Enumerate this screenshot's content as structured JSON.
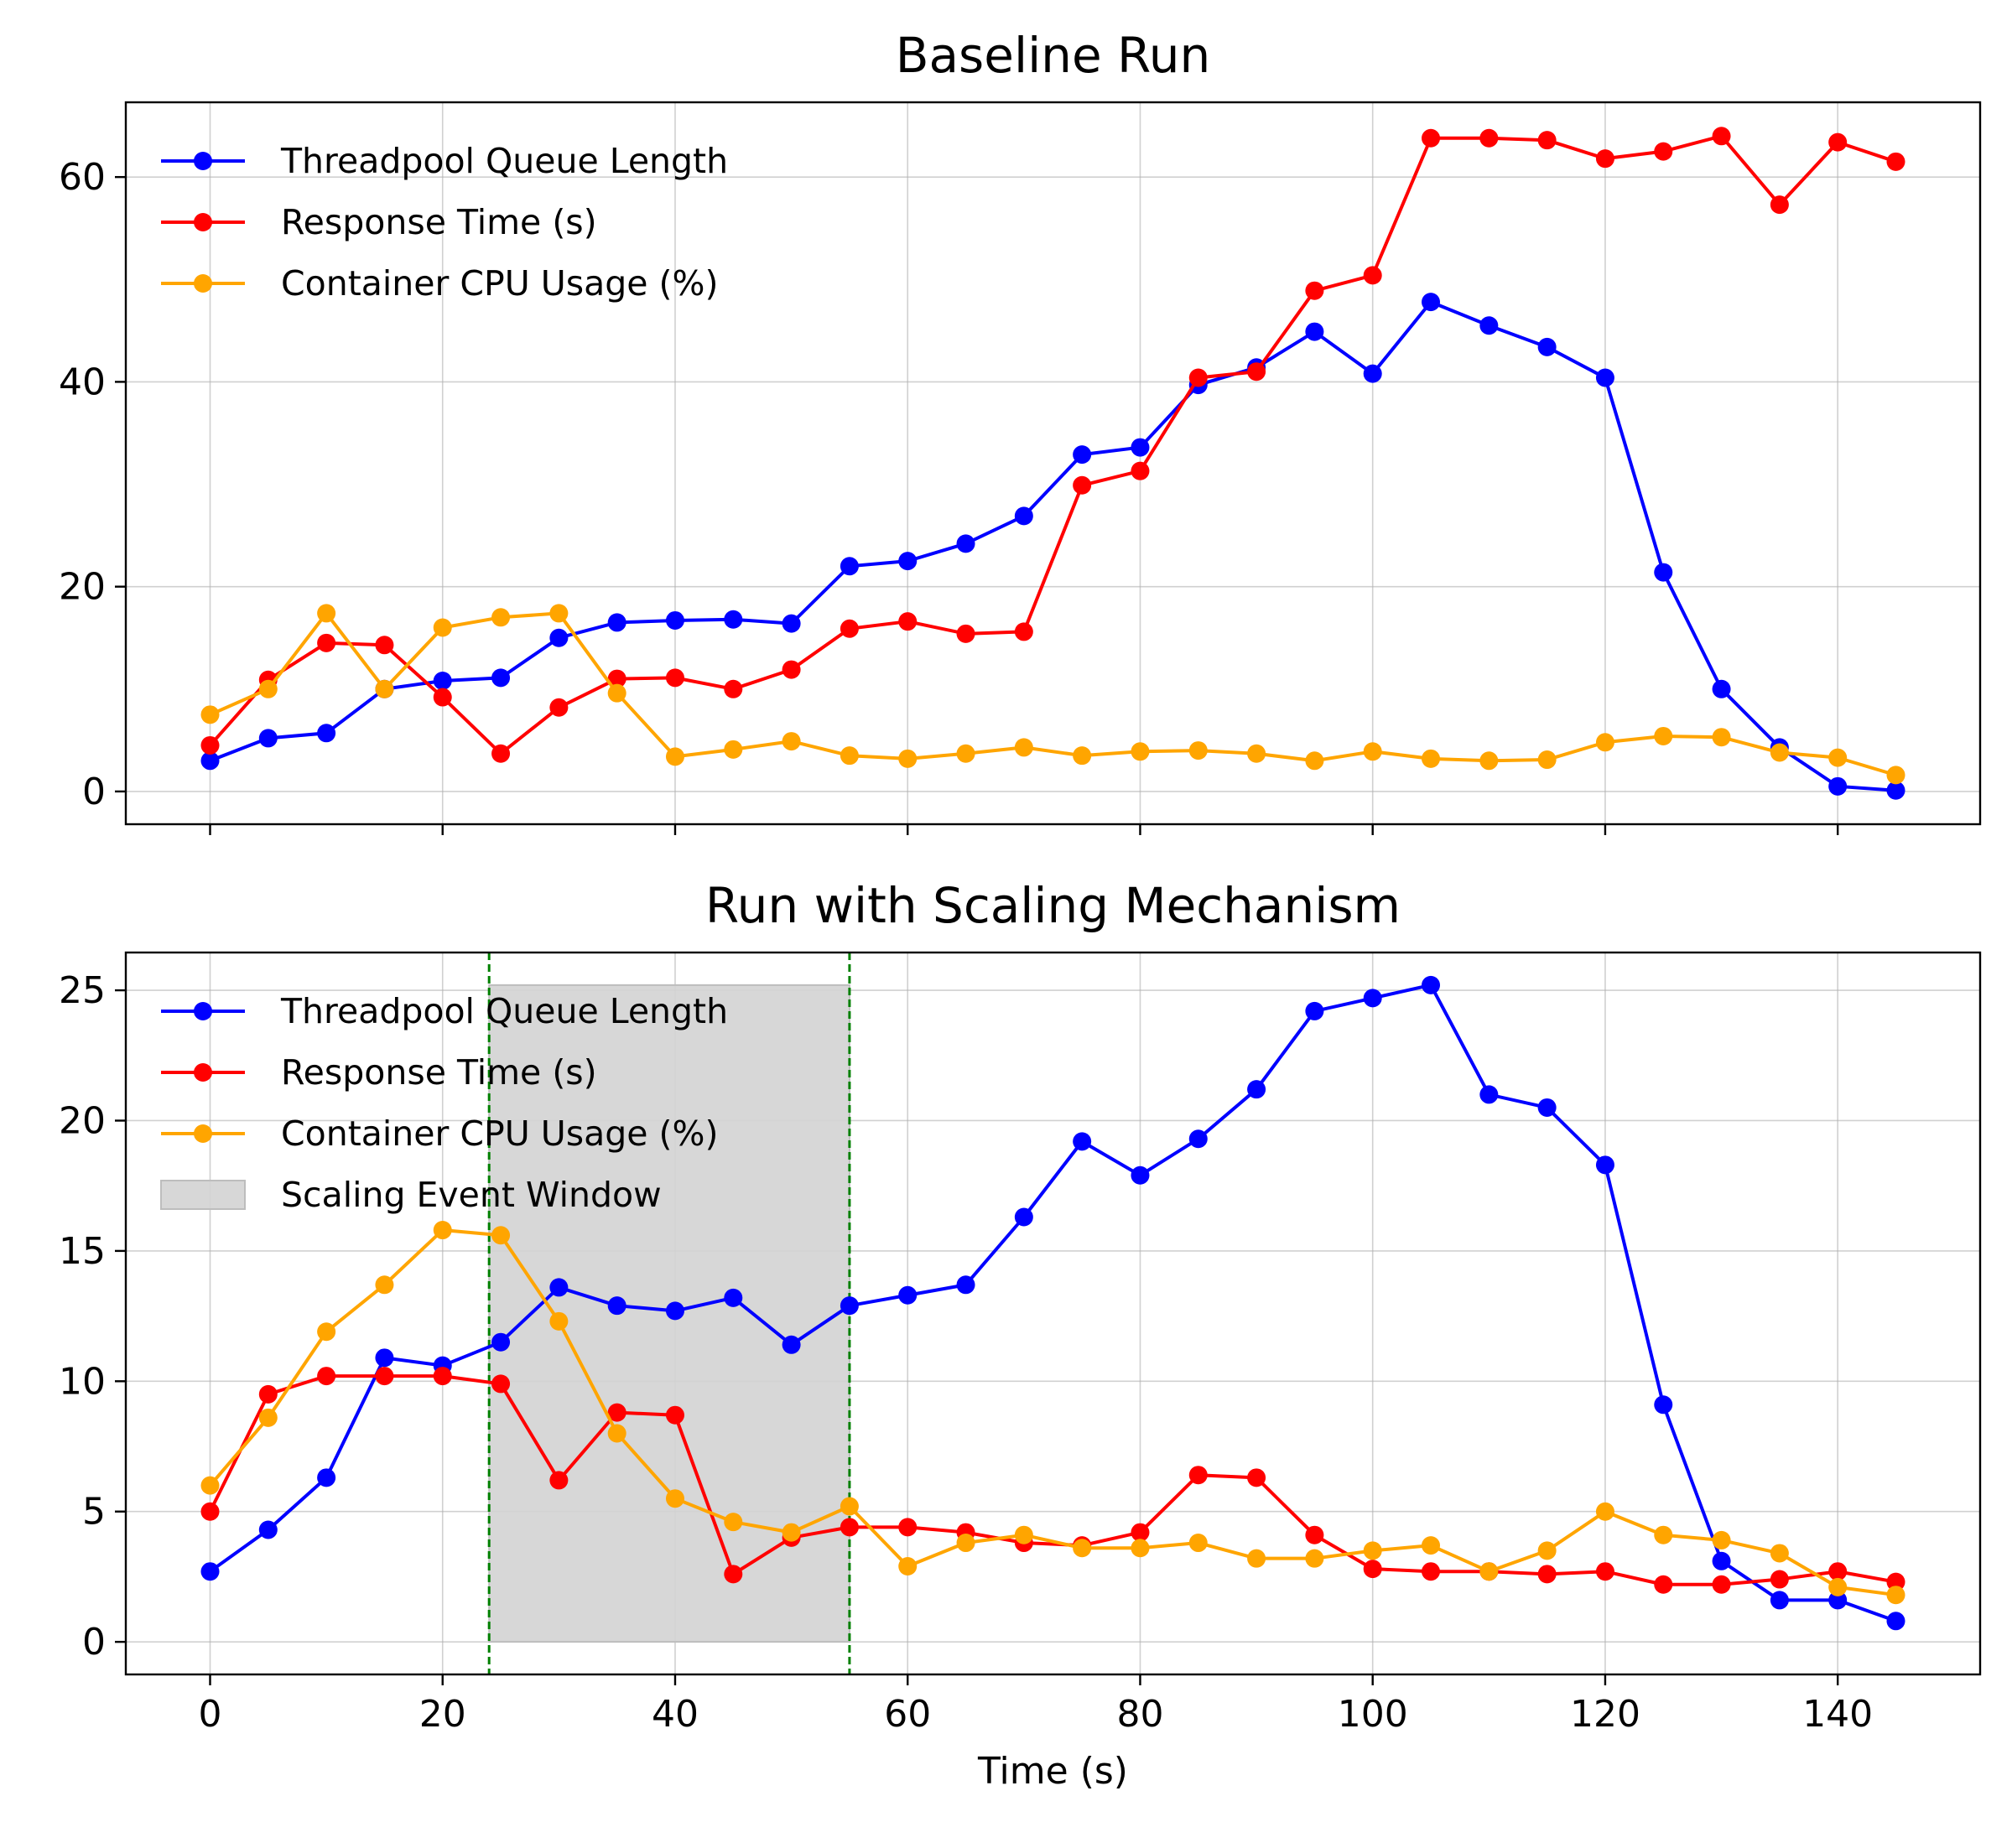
{
  "chart_data": [
    {
      "type": "line",
      "title": "Baseline Run",
      "xlabel": "",
      "ylabel": "",
      "xlim": [
        -7.25,
        152.25
      ],
      "ylim": [
        -3.2,
        67.3
      ],
      "xticks": [
        0,
        20,
        40,
        60,
        80,
        100,
        120,
        140
      ],
      "show_xtick_labels": false,
      "yticks": [
        0,
        20,
        40,
        60
      ],
      "grid": true,
      "legend_position": "upper-left",
      "x": [
        0,
        5,
        10,
        15,
        20,
        25,
        30,
        35,
        40,
        45,
        50,
        55,
        60,
        65,
        70,
        75,
        80,
        85,
        90,
        95,
        100,
        105,
        110,
        115,
        120,
        125,
        130,
        135,
        140,
        145
      ],
      "series": [
        {
          "name": "Threadpool Queue Length",
          "color": "#0000ff",
          "values": [
            3.0,
            5.2,
            5.7,
            10.0,
            10.8,
            11.1,
            15.0,
            16.5,
            16.7,
            16.8,
            16.4,
            22.0,
            22.5,
            24.2,
            26.9,
            32.9,
            33.6,
            39.7,
            41.4,
            44.9,
            40.8,
            47.8,
            45.5,
            43.4,
            40.4,
            21.4,
            10.0,
            4.3,
            0.5,
            0.1
          ]
        },
        {
          "name": "Response Time (s)",
          "color": "#ff0000",
          "values": [
            4.5,
            10.9,
            14.5,
            14.3,
            9.2,
            3.7,
            8.2,
            11.0,
            11.1,
            10.0,
            11.9,
            15.9,
            16.6,
            15.4,
            15.6,
            29.9,
            31.3,
            40.4,
            41.0,
            48.9,
            50.4,
            63.8,
            63.8,
            63.6,
            61.8,
            62.5,
            64.0,
            57.3,
            63.4,
            61.5
          ]
        },
        {
          "name": "Container CPU Usage (%)",
          "color": "#ffa500",
          "values": [
            7.5,
            10.0,
            17.4,
            10.0,
            16.0,
            17.0,
            17.4,
            9.6,
            3.4,
            4.1,
            4.9,
            3.5,
            3.2,
            3.7,
            4.3,
            3.5,
            3.9,
            4.0,
            3.7,
            3.0,
            3.9,
            3.2,
            3.0,
            3.1,
            4.8,
            5.4,
            5.3,
            3.8,
            3.3,
            1.6
          ]
        }
      ]
    },
    {
      "type": "line",
      "title": "Run with Scaling Mechanism",
      "xlabel": "Time (s)",
      "ylabel": "",
      "xlim": [
        -7.25,
        152.25
      ],
      "ylim": [
        -1.25,
        26.45
      ],
      "xticks": [
        0,
        20,
        40,
        60,
        80,
        100,
        120,
        140
      ],
      "yticks": [
        0,
        5,
        10,
        15,
        20,
        25
      ],
      "grid": true,
      "legend_position": "upper-left",
      "x": [
        0,
        5,
        10,
        15,
        20,
        25,
        30,
        35,
        40,
        45,
        50,
        55,
        60,
        65,
        70,
        75,
        80,
        85,
        90,
        95,
        100,
        105,
        110,
        115,
        120,
        125,
        130,
        135,
        140,
        145
      ],
      "series": [
        {
          "name": "Threadpool Queue Length",
          "color": "#0000ff",
          "values": [
            2.7,
            4.3,
            6.3,
            10.9,
            10.6,
            11.5,
            13.6,
            12.9,
            12.7,
            13.2,
            11.4,
            12.9,
            13.3,
            13.7,
            16.3,
            19.2,
            17.9,
            19.3,
            21.2,
            24.2,
            24.7,
            25.2,
            21.0,
            20.5,
            18.3,
            9.1,
            3.1,
            1.6,
            1.6,
            0.8
          ]
        },
        {
          "name": "Response Time (s)",
          "color": "#ff0000",
          "values": [
            5.0,
            9.5,
            10.2,
            10.2,
            10.2,
            9.9,
            6.2,
            8.8,
            8.7,
            2.6,
            4.0,
            4.4,
            4.4,
            4.2,
            3.8,
            3.7,
            4.2,
            6.4,
            6.3,
            4.1,
            2.8,
            2.7,
            2.7,
            2.6,
            2.7,
            2.2,
            2.2,
            2.4,
            2.7,
            2.3
          ]
        },
        {
          "name": "Container CPU Usage (%)",
          "color": "#ffa500",
          "values": [
            6.0,
            8.6,
            11.9,
            13.7,
            15.8,
            15.6,
            12.3,
            8.0,
            5.5,
            4.6,
            4.2,
            5.2,
            2.9,
            3.8,
            4.1,
            3.6,
            3.6,
            3.8,
            3.2,
            3.2,
            3.5,
            3.7,
            2.7,
            3.5,
            5.0,
            4.1,
            3.9,
            3.4,
            2.1,
            1.8
          ]
        }
      ],
      "shaded_region": {
        "name": "Scaling Event Window",
        "x_start": 24,
        "x_end": 55,
        "y_start": 0,
        "y_end": 25.2,
        "color": "#d3d3d3"
      },
      "vertical_lines": [
        {
          "x": 24,
          "color": "#008000",
          "style": "dashed"
        },
        {
          "x": 55,
          "color": "#008000",
          "style": "dashed"
        }
      ]
    }
  ]
}
